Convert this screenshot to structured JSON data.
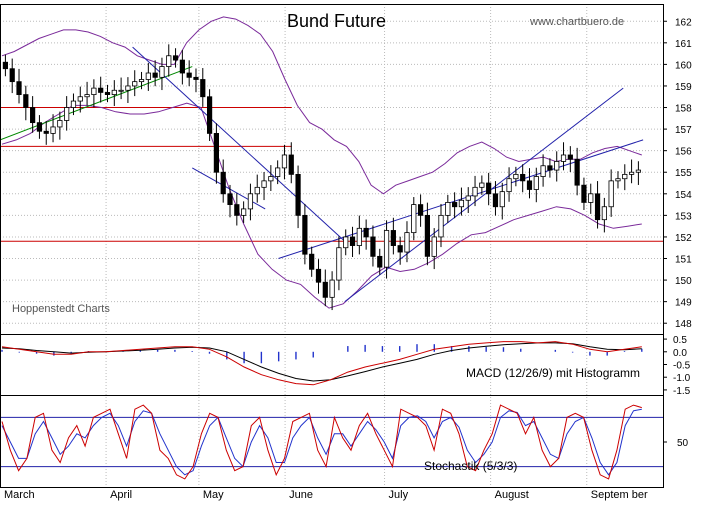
{
  "chart_data": [
    {
      "type": "candlestick",
      "panel": "price",
      "title": "Bund Future",
      "source": "www.chartbuero.de",
      "provider": "Hoppenstedt Charts",
      "x_months": [
        "March",
        "April",
        "May",
        "June",
        "July",
        "August",
        "Septem ber"
      ],
      "y_ticks": [
        148,
        149,
        150,
        151,
        152,
        153,
        154,
        155,
        156,
        157,
        158,
        159,
        160,
        161,
        162
      ],
      "ylim": [
        147.5,
        162.8
      ],
      "grid": true,
      "horizontal_levels": [
        {
          "value": 158.0,
          "color": "#cc0000",
          "from": 0.0,
          "to": 0.44
        },
        {
          "value": 156.2,
          "color": "#cc0000",
          "from": 0.0,
          "to": 0.44
        },
        {
          "value": 151.8,
          "color": "#cc0000",
          "from": 0.0,
          "to": 1.0
        }
      ],
      "closes": [
        159.8,
        159.2,
        158.6,
        158.0,
        157.3,
        156.9,
        156.8,
        157.1,
        157.4,
        158.0,
        158.3,
        158.5,
        158.6,
        158.9,
        158.7,
        158.6,
        158.8,
        158.8,
        159.0,
        159.2,
        159.3,
        159.6,
        159.4,
        159.9,
        160.4,
        160.2,
        159.6,
        159.4,
        159.3,
        158.5,
        156.8,
        155.0,
        154.0,
        153.5,
        153.0,
        153.3,
        154.0,
        154.3,
        154.6,
        154.8,
        155.2,
        155.8,
        154.9,
        153.0,
        151.2,
        150.5,
        149.9,
        149.2,
        150.0,
        151.5,
        152.0,
        151.6,
        152.4,
        152.0,
        151.1,
        150.6,
        152.3,
        151.6,
        151.3,
        152.2,
        153.5,
        153.0,
        151.1,
        152.0,
        153.0,
        153.6,
        153.4,
        153.7,
        153.9,
        154.3,
        154.5,
        154.0,
        153.4,
        154.1,
        154.7,
        154.9,
        154.6,
        154.2,
        154.8,
        155.3,
        155.1,
        155.5,
        155.8,
        155.6,
        154.4,
        153.6,
        154.0,
        152.8,
        153.4,
        154.6,
        154.7,
        154.9,
        155.0,
        155.1
      ],
      "bollinger_upper": [
        160.4,
        160.6,
        160.9,
        161.2,
        161.4,
        161.6,
        161.6,
        161.5,
        161.3,
        161.0,
        160.8,
        160.4,
        160.2,
        160.0,
        160.0,
        161.0,
        161.6,
        162.0,
        162.2,
        162.1,
        161.8,
        161.4,
        160.6,
        159.3,
        158.1,
        157.3,
        157.0,
        156.5,
        156.2,
        155.5,
        154.4,
        154.0,
        154.4,
        154.6,
        154.8,
        155.0,
        155.4,
        155.9,
        156.2,
        156.4,
        156.1,
        155.7,
        155.5,
        155.6,
        155.7,
        155.5,
        155.6,
        155.6,
        155.9,
        156.1,
        156.2,
        156.0,
        155.8
      ],
      "bollinger_lower": [
        156.3,
        156.5,
        156.8,
        157.3,
        157.7,
        158.1,
        158.1,
        158.0,
        157.8,
        157.7,
        157.7,
        157.8,
        158.0,
        158.2,
        158.0,
        156.1,
        154.2,
        152.6,
        151.2,
        150.5,
        150.0,
        149.8,
        149.2,
        148.7,
        148.9,
        149.5,
        150.2,
        150.6,
        150.4,
        150.5,
        150.8,
        151.2,
        151.7,
        152.1,
        152.2,
        152.5,
        152.8,
        153.0,
        153.2,
        153.4,
        153.3,
        153.0,
        152.6,
        152.4,
        152.5,
        152.6
      ],
      "trendlines": [
        {
          "color": "#008800",
          "from": [
            0,
            156.5
          ],
          "to": [
            0.29,
            159.9
          ]
        },
        {
          "color": "#2222aa",
          "from": [
            0.2,
            160.8
          ],
          "to": [
            0.52,
            151.8
          ]
        },
        {
          "color": "#2222aa",
          "from": [
            0.29,
            155.2
          ],
          "to": [
            0.4,
            153.3
          ]
        },
        {
          "color": "#2222aa",
          "from": [
            0.52,
            149.0
          ],
          "to": [
            0.94,
            158.9
          ]
        },
        {
          "color": "#2222aa",
          "from": [
            0.42,
            151.0
          ],
          "to": [
            0.97,
            156.5
          ]
        }
      ]
    },
    {
      "type": "line",
      "panel": "macd",
      "label": "MACD (12/26/9) mit Histogramm",
      "y_ticks": [
        "0.5",
        "0.0",
        "-0.5",
        "-1.0",
        "-1.5"
      ],
      "ylim": [
        -1.7,
        0.7
      ],
      "macd": [
        0.2,
        0.1,
        0.0,
        -0.1,
        -0.1,
        0.0,
        0.0,
        0.05,
        0.1,
        0.15,
        0.2,
        0.2,
        0.1,
        -0.2,
        -0.6,
        -0.9,
        -1.1,
        -1.25,
        -1.3,
        -1.1,
        -0.8,
        -0.6,
        -0.45,
        -0.3,
        -0.1,
        0.1,
        0.2,
        0.3,
        0.35,
        0.4,
        0.4,
        0.35,
        0.4,
        0.3,
        0.1,
        0.0,
        0.1,
        0.2
      ],
      "signal": [
        0.15,
        0.12,
        0.05,
        0.0,
        -0.05,
        -0.02,
        0.0,
        0.03,
        0.06,
        0.1,
        0.15,
        0.18,
        0.15,
        0.0,
        -0.3,
        -0.6,
        -0.85,
        -1.05,
        -1.15,
        -1.1,
        -0.95,
        -0.78,
        -0.6,
        -0.45,
        -0.3,
        -0.1,
        0.05,
        0.15,
        0.22,
        0.28,
        0.32,
        0.35,
        0.35,
        0.32,
        0.2,
        0.1,
        0.08,
        0.12
      ]
    },
    {
      "type": "line",
      "panel": "stochastic",
      "label": "Stochastik (5/3/3)",
      "y_ticks": [
        "50"
      ],
      "ylim": [
        0,
        100
      ],
      "levels": [
        80,
        20
      ],
      "k_line": [
        75,
        40,
        15,
        30,
        80,
        85,
        40,
        25,
        55,
        70,
        45,
        80,
        85,
        90,
        60,
        30,
        90,
        95,
        85,
        40,
        30,
        10,
        5,
        20,
        60,
        85,
        80,
        40,
        15,
        20,
        70,
        80,
        40,
        10,
        30,
        75,
        80,
        85,
        40,
        20,
        80,
        55,
        40,
        70,
        85,
        60,
        40,
        20,
        90,
        85,
        80,
        70,
        40,
        90,
        85,
        60,
        20,
        15,
        40,
        60,
        95,
        90,
        85,
        60,
        80,
        40,
        20,
        30,
        80,
        85,
        80,
        40,
        10,
        5,
        40,
        90,
        95,
        92
      ],
      "d_line": [
        70,
        50,
        30,
        30,
        60,
        75,
        55,
        35,
        45,
        60,
        55,
        70,
        80,
        85,
        70,
        45,
        75,
        88,
        85,
        60,
        40,
        20,
        10,
        15,
        45,
        70,
        80,
        55,
        30,
        20,
        50,
        70,
        55,
        25,
        25,
        55,
        70,
        80,
        55,
        35,
        60,
        60,
        45,
        60,
        75,
        65,
        50,
        30,
        70,
        80,
        82,
        75,
        55,
        75,
        80,
        68,
        40,
        25,
        35,
        50,
        80,
        88,
        86,
        70,
        75,
        55,
        35,
        30,
        60,
        75,
        80,
        55,
        25,
        10,
        25,
        70,
        88,
        90
      ]
    }
  ]
}
